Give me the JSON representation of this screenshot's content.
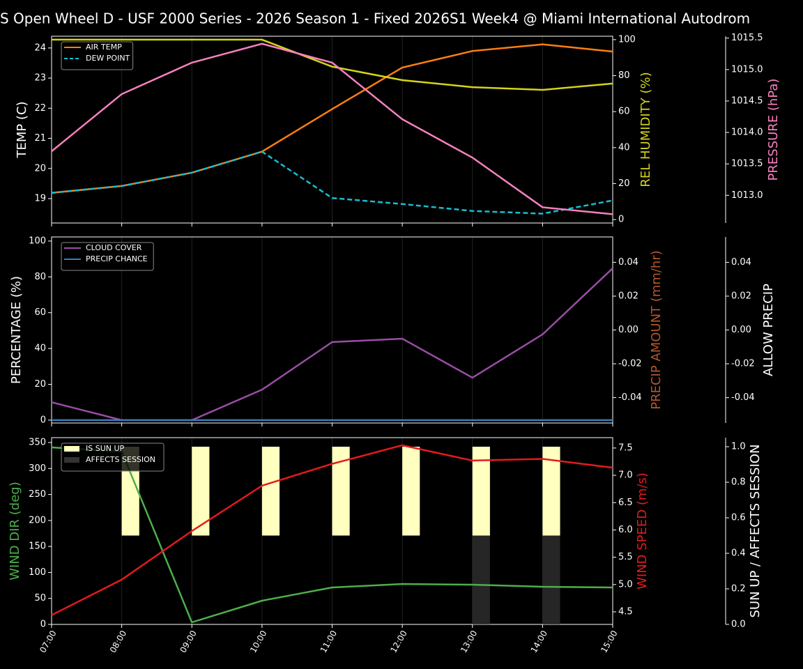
{
  "title": "S Open Wheel D - USF 2000 Series  - 2026 Season 1 - Fixed 2026S1 Week4 @ Miami International Autodrom",
  "chart_data": [
    {
      "type": "line",
      "ylabel": "TEMP (C)",
      "ylim": [
        18.19,
        24.39
      ],
      "yticks": [
        19,
        20,
        21,
        22,
        23,
        24
      ],
      "y2label": "REL HUMIDITY (%)",
      "y2label_color": "#d4d41c",
      "y2lim": [
        -1.9,
        101.9
      ],
      "y2ticks": [
        0,
        20,
        40,
        60,
        80,
        100
      ],
      "y3label": "PRESSURE (hPa)",
      "y3label_color": "#f781bf",
      "y3lim": [
        1012.56,
        1015.53
      ],
      "y3ticks": [
        {
          "value": 1013,
          "label": "1013.0"
        },
        {
          "value": 1013.5,
          "label": "1013.5"
        },
        {
          "value": 1014,
          "label": "1014.0"
        },
        {
          "value": 1014.5,
          "label": "1014.5"
        },
        {
          "value": 1015,
          "label": "1015.0"
        },
        {
          "value": 1015.5,
          "label": "1015.5"
        }
      ],
      "legend": "upper left",
      "series": [
        {
          "name": "AIR TEMP",
          "color": "#ff7f0e",
          "axis": "y",
          "values": [
            19.19,
            19.42,
            19.86,
            20.56,
            21.97,
            23.35,
            23.9,
            24.12,
            23.88
          ]
        },
        {
          "name": "DEW POINT",
          "color": "#17becf",
          "axis": "y",
          "dashed": true,
          "values": [
            19.19,
            19.42,
            19.86,
            20.56,
            19.02,
            18.82,
            18.59,
            18.5,
            18.94
          ]
        },
        {
          "color": "#d4d41c",
          "axis": "y2",
          "values": [
            100,
            100,
            100,
            100,
            85,
            77.5,
            73.6,
            72.1,
            75.6
          ]
        },
        {
          "color": "#f781bf",
          "axis": "y3",
          "values": [
            1013.7,
            1014.61,
            1015.11,
            1015.41,
            1015.11,
            1014.21,
            1013.6,
            1012.81,
            1012.7
          ]
        }
      ]
    },
    {
      "type": "line",
      "ylabel": "PERCENTAGE (%)",
      "ylim": [
        -1.6,
        102.3
      ],
      "yticks": [
        0,
        20,
        40,
        60,
        80,
        100
      ],
      "y2label": "PRECIP AMOUNT (mm/hr)",
      "y2label_color": "#b5562c",
      "y2lim": [
        -0.055,
        0.055
      ],
      "y2ticks": [
        -0.04,
        -0.02,
        {
          "value": 0,
          "label": "0.00"
        },
        0.02,
        0.04
      ],
      "y3label": "ALLOW PRECIP",
      "y3lim": [
        -0.055,
        0.055
      ],
      "y3ticks": [
        -0.04,
        -0.02,
        {
          "value": 0,
          "label": "0.00"
        },
        0.02,
        0.04
      ],
      "legend": "upper left",
      "series": [
        {
          "name": "CLOUD COVER",
          "color": "#984ea3",
          "axis": "y",
          "values": [
            10,
            0,
            0,
            17,
            43.6,
            45.5,
            23.7,
            47.9,
            84.8
          ]
        },
        {
          "name": "PRECIP CHANCE",
          "color": "#377eb8",
          "axis": "y",
          "values": [
            0,
            0,
            0,
            0,
            0,
            0,
            0,
            0,
            0
          ]
        }
      ]
    },
    {
      "type": "line",
      "categories": [
        "07:00",
        "08:00",
        "09:00",
        "10:00",
        "11:00",
        "12:00",
        "13:00",
        "14:00",
        "15:00"
      ],
      "ylabel": "WIND DIR (deg)",
      "ylabel_color": "#4daf4a",
      "ylim": [
        0,
        359.4
      ],
      "yticks": [
        0,
        50,
        100,
        150,
        200,
        250,
        300,
        350
      ],
      "y2label": "WIND SPEED (m/s)",
      "y2label_color": "#e41a1c",
      "y2lim": [
        4.27,
        7.69
      ],
      "y2ticks": [
        4.5,
        {
          "value": 5,
          "label": "5.0"
        },
        5.5,
        {
          "value": 6,
          "label": "6.0"
        },
        6.5,
        {
          "value": 7,
          "label": "7.0"
        },
        7.5
      ],
      "y3label": "SUN UP / AFFECTS SESSION",
      "y3lim": [
        0,
        1.051
      ],
      "y3ticks": [
        {
          "value": 0,
          "label": "0.0"
        },
        0.2,
        0.4,
        0.6,
        0.8,
        {
          "value": 1,
          "label": "1.0"
        }
      ],
      "legend": "upper left",
      "series": [
        {
          "name": "IS SUN UP",
          "kind": "bar",
          "color": "#ffffc0",
          "axis": "y3",
          "bottom": 0.5,
          "values": [
            0,
            0.5,
            0.5,
            0.5,
            0.5,
            0.5,
            0.5,
            0.5,
            0
          ]
        },
        {
          "name": "AFFECTS SESSION",
          "kind": "bar",
          "color": "#333333",
          "axis": "y3",
          "bottom": 0,
          "values": [
            0,
            0,
            0,
            0,
            0,
            0,
            0.5,
            0.5,
            0
          ]
        },
        {
          "color": "#4daf4a",
          "axis": "y",
          "values": [
            340.6,
            332.6,
            4,
            45.6,
            71,
            77.8,
            76.4,
            72.4,
            71
          ]
        },
        {
          "color": "#e41a1c",
          "axis": "y2",
          "values": [
            4.44,
            5.09,
            5.98,
            6.81,
            7.21,
            7.55,
            7.27,
            7.3,
            7.14
          ]
        }
      ]
    }
  ]
}
